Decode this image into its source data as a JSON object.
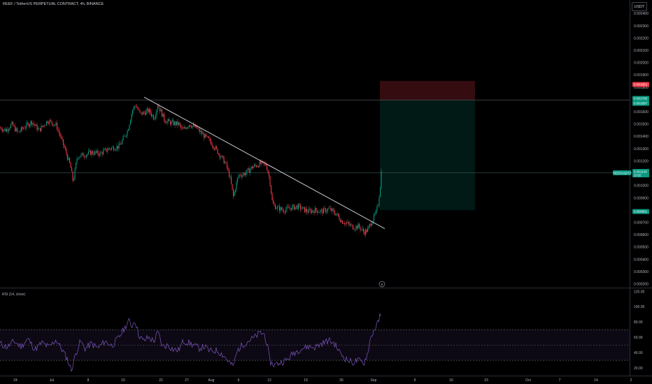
{
  "header": {
    "title": "REEF / TetherUS PERPETUAL CONTRACT, 4h, BINANCE",
    "currency": "USDT"
  },
  "rsi": {
    "title": "RSI (14, close)",
    "ticks": [
      "120.00",
      "100.00",
      "80.00",
      "60.00",
      "40.00",
      "20.00"
    ]
  },
  "markers": {
    "event_icon_label": "8"
  },
  "chart_data": {
    "type": "candlestick",
    "price_axis": {
      "ticks": [
        "0.002400",
        "0.002300",
        "0.002200",
        "0.002100",
        "0.002000",
        "0.001900",
        "0.001800",
        "0.001600",
        "0.001500",
        "0.001400",
        "0.001300",
        "0.001200",
        "0.001000",
        "0.000900",
        "0.000700",
        "0.000600",
        "0.000500",
        "0.000400",
        "0.000300",
        "0.000200"
      ],
      "range": [
        0.00017,
        0.00251
      ]
    },
    "time_axis": {
      "labels": [
        "24",
        "Jul",
        "8",
        "15",
        "22",
        "27",
        "Aug",
        "6",
        "12",
        "19",
        "26",
        "Sep",
        "9",
        "16",
        "23",
        "Oct",
        "7",
        "14",
        "2"
      ]
    },
    "price_tags": [
      {
        "text": "0.001852",
        "value": 0.001852,
        "color": "#f23645"
      },
      {
        "text": "0.001700",
        "value": 0.0017,
        "color": "#089981"
      },
      {
        "text": "0.001697",
        "value": 0.001697,
        "color": "#089981"
      },
      {
        "text": "0.000801",
        "value": 0.000801,
        "color": "#089981"
      }
    ],
    "current_price": {
      "symbol": "REEFUSDT.P",
      "price": "0.001104",
      "countdown": "10:32",
      "value": 0.001104
    },
    "price_path": [
      [
        0,
        0.00147
      ],
      [
        8,
        0.00145
      ],
      [
        16,
        0.0015
      ],
      [
        25,
        0.00143
      ],
      [
        35,
        0.00148
      ],
      [
        45,
        0.00152
      ],
      [
        55,
        0.00145
      ],
      [
        68,
        0.00153
      ],
      [
        80,
        0.00149
      ],
      [
        92,
        0.0013
      ],
      [
        100,
        0.00116
      ],
      [
        104,
        0.00103
      ],
      [
        110,
        0.00124
      ],
      [
        120,
        0.00125
      ],
      [
        130,
        0.00127
      ],
      [
        142,
        0.00126
      ],
      [
        155,
        0.0013
      ],
      [
        170,
        0.00132
      ],
      [
        182,
        0.00145
      ],
      [
        188,
        0.0016
      ],
      [
        193,
        0.00166
      ],
      [
        200,
        0.00158
      ],
      [
        212,
        0.00161
      ],
      [
        220,
        0.00155
      ],
      [
        225,
        0.00166
      ],
      [
        235,
        0.00153
      ],
      [
        245,
        0.00151
      ],
      [
        255,
        0.0015
      ],
      [
        260,
        0.00145
      ],
      [
        270,
        0.0015
      ],
      [
        280,
        0.00147
      ],
      [
        292,
        0.0014
      ],
      [
        300,
        0.00136
      ],
      [
        310,
        0.00128
      ],
      [
        322,
        0.00118
      ],
      [
        328,
        0.00107
      ],
      [
        333,
        0.00091
      ],
      [
        340,
        0.00108
      ],
      [
        350,
        0.0011
      ],
      [
        360,
        0.00115
      ],
      [
        372,
        0.00118
      ],
      [
        380,
        0.00117
      ],
      [
        385,
        0.00105
      ],
      [
        389,
        0.00085
      ],
      [
        395,
        0.00082
      ],
      [
        405,
        0.0008
      ],
      [
        415,
        0.00082
      ],
      [
        425,
        0.00083
      ],
      [
        432,
        0.00081
      ],
      [
        440,
        0.00079
      ],
      [
        450,
        0.0008
      ],
      [
        460,
        0.00079
      ],
      [
        470,
        0.00081
      ],
      [
        480,
        0.00077
      ],
      [
        488,
        0.00071
      ],
      [
        496,
        0.00069
      ],
      [
        505,
        0.00066
      ],
      [
        512,
        0.00067
      ],
      [
        520,
        0.00062
      ],
      [
        525,
        0.00064
      ],
      [
        529,
        0.00069
      ],
      [
        533,
        0.00073
      ],
      [
        537,
        0.00078
      ],
      [
        540,
        0.00085
      ],
      [
        543,
        0.001
      ],
      [
        545,
        0.00115
      ]
    ],
    "trendline": {
      "from": [
        206,
        0.00172
      ],
      "to": [
        550,
        0.00065
      ]
    },
    "short_position": {
      "entry": 0.001697,
      "stop": 0.001852,
      "target": 0.000801,
      "start_x": 543,
      "end_x": 679
    },
    "rsi_levels": {
      "upper": 70,
      "middle": 50,
      "lower": 30
    },
    "rsi_range": [
      10,
      125
    ],
    "rsi_path": [
      [
        0,
        52
      ],
      [
        10,
        47
      ],
      [
        20,
        55
      ],
      [
        30,
        48
      ],
      [
        40,
        58
      ],
      [
        50,
        44
      ],
      [
        60,
        53
      ],
      [
        70,
        47
      ],
      [
        80,
        57
      ],
      [
        88,
        45
      ],
      [
        96,
        32
      ],
      [
        102,
        17
      ],
      [
        108,
        38
      ],
      [
        115,
        55
      ],
      [
        122,
        45
      ],
      [
        130,
        52
      ],
      [
        140,
        46
      ],
      [
        150,
        55
      ],
      [
        160,
        49
      ],
      [
        170,
        60
      ],
      [
        178,
        72
      ],
      [
        184,
        82
      ],
      [
        188,
        74
      ],
      [
        193,
        83
      ],
      [
        198,
        64
      ],
      [
        205,
        55
      ],
      [
        212,
        60
      ],
      [
        220,
        55
      ],
      [
        226,
        67
      ],
      [
        232,
        48
      ],
      [
        240,
        50
      ],
      [
        248,
        44
      ],
      [
        255,
        43
      ],
      [
        262,
        55
      ],
      [
        270,
        53
      ],
      [
        278,
        49
      ],
      [
        285,
        46
      ],
      [
        292,
        48
      ],
      [
        300,
        42
      ],
      [
        310,
        43
      ],
      [
        320,
        36
      ],
      [
        328,
        27
      ],
      [
        333,
        22
      ],
      [
        340,
        44
      ],
      [
        348,
        51
      ],
      [
        356,
        56
      ],
      [
        364,
        60
      ],
      [
        372,
        66
      ],
      [
        378,
        64
      ],
      [
        382,
        49
      ],
      [
        386,
        28
      ],
      [
        392,
        24
      ],
      [
        400,
        27
      ],
      [
        410,
        30
      ],
      [
        420,
        40
      ],
      [
        430,
        45
      ],
      [
        440,
        48
      ],
      [
        450,
        47
      ],
      [
        460,
        52
      ],
      [
        470,
        56
      ],
      [
        478,
        52
      ],
      [
        486,
        40
      ],
      [
        494,
        32
      ],
      [
        504,
        27
      ],
      [
        512,
        30
      ],
      [
        520,
        26
      ],
      [
        525,
        38
      ],
      [
        530,
        60
      ],
      [
        536,
        72
      ],
      [
        540,
        78
      ],
      [
        543,
        88
      ],
      [
        545,
        84
      ]
    ]
  }
}
